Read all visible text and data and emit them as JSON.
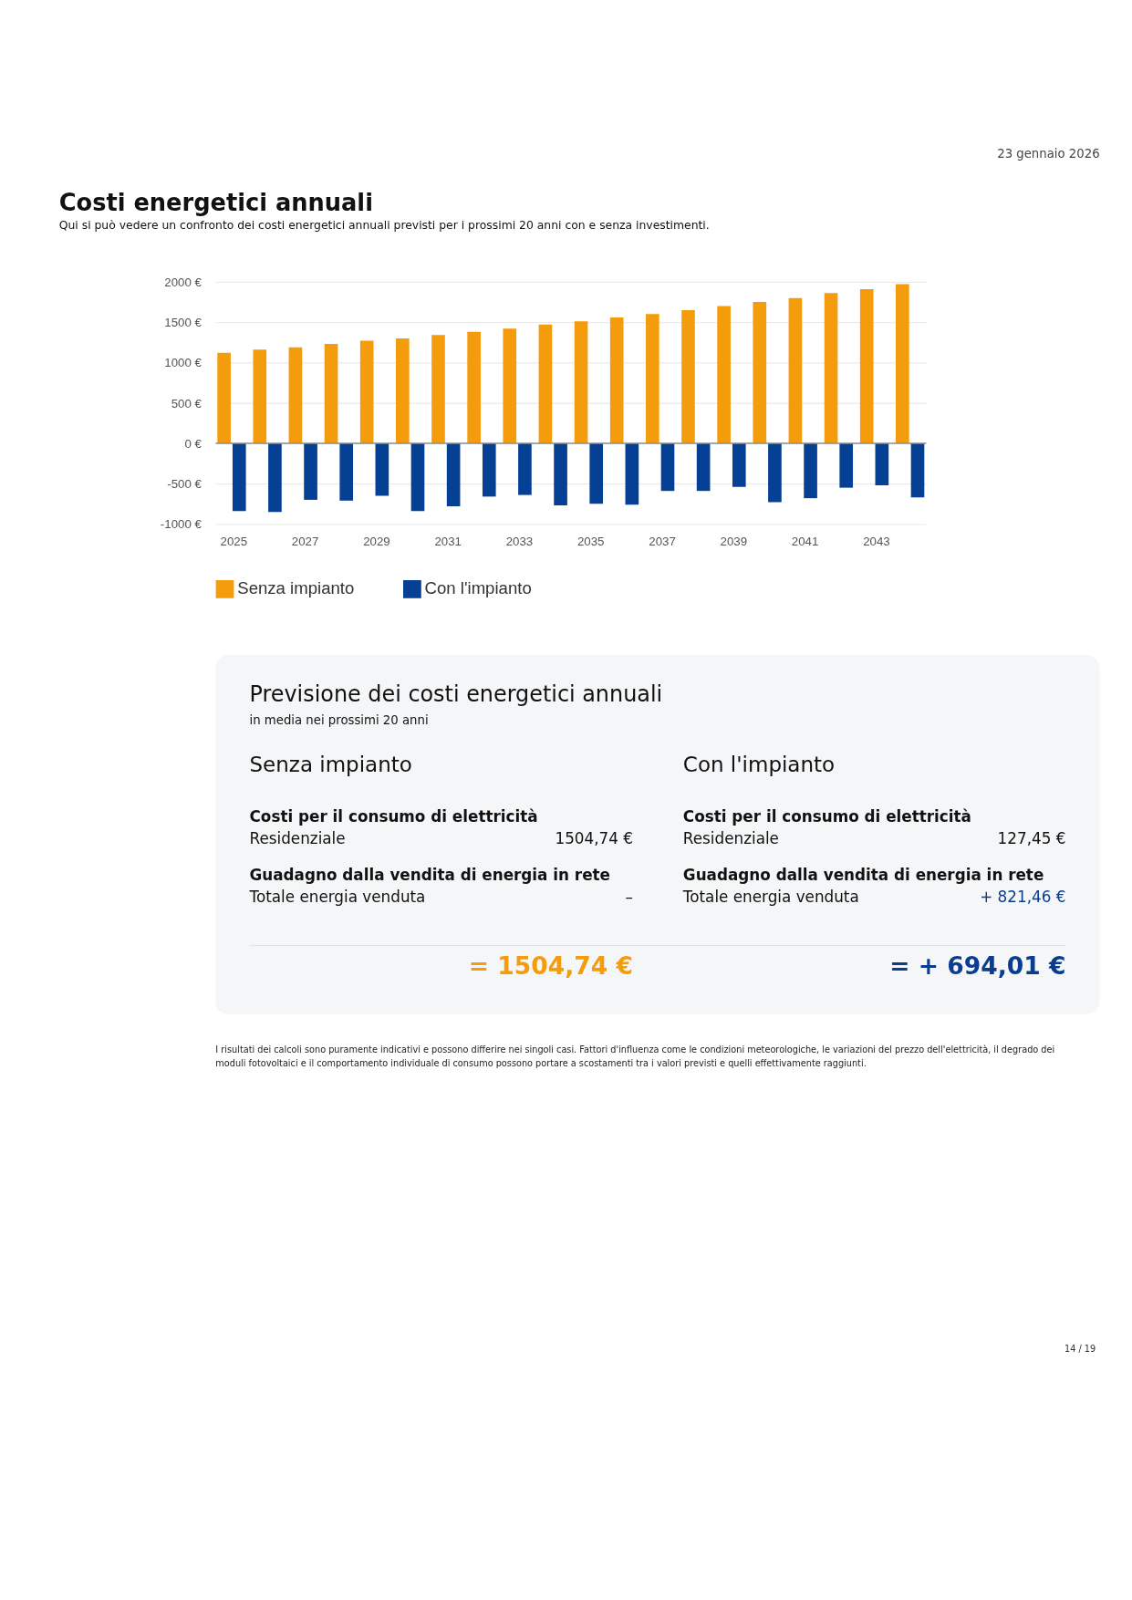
{
  "chart_data": [
    {
      "type": "bar",
      "title": "Costi energetici annuali",
      "subtitle": "Qui si può vedere un confronto dei costi energetici annuali previsti per i prossimi 20 anni con e senza investimenti.",
      "annotations": [
        "23 gennaio 2026"
      ],
      "categories": [
        "2025",
        null,
        "2027",
        null,
        "2029",
        null,
        "2031",
        null,
        "2033",
        null,
        "2035",
        null,
        "2037",
        null,
        "2039",
        null,
        "2041",
        null,
        "2043",
        null
      ],
      "series": [
        {
          "name": "Senza impianto",
          "color": "#f59c0d",
          "values": [
            1120,
            1160,
            1190,
            1230,
            1270,
            1300,
            1340,
            1380,
            1420,
            1470,
            1510,
            1560,
            1600,
            1650,
            1700,
            1750,
            1800,
            1860,
            1910,
            1970
          ]
        },
        {
          "name": "Con l'impianto",
          "color": "#054095",
          "values": [
            -840,
            -850,
            -700,
            -710,
            -650,
            -840,
            -780,
            -660,
            -640,
            -770,
            -750,
            -760,
            -590,
            -590,
            -540,
            -730,
            -680,
            -550,
            -520,
            -670
          ]
        }
      ],
      "ylim": [
        -1000,
        2000
      ],
      "yticks": [
        {
          "value": -1000,
          "label": "-1000 €"
        },
        {
          "value": -500,
          "label": "-500 €"
        },
        {
          "value": 0,
          "label": "0 €"
        },
        {
          "value": 500,
          "label": "500 €"
        },
        {
          "value": 1000,
          "label": "1000 €"
        },
        {
          "value": 1500,
          "label": "1500 €"
        },
        {
          "value": 2000,
          "label": "2000 €"
        }
      ],
      "grid": "y",
      "legend": "bottom"
    },
    {
      "type": "other",
      "title": "Previsione dei costi energetici annuali",
      "subtitle": "in media nei prossimi 20 anni",
      "colors": [
        "#f59c0d",
        "#0a3d8f"
      ],
      "annotations": [
        "Senza impianto",
        "Costi per il consumo di elettricità",
        "Residenziale",
        "1504,74 €",
        "Guadagno dalla vendita di energia in rete",
        "Totale energia venduta",
        "–",
        "= 1504,74 €",
        "Con l'impianto",
        "Costi per il consumo di elettricità",
        "Residenziale",
        "127,45 €",
        "Guadagno dalla vendita di energia in rete",
        "Totale energia venduta",
        "+ 821,46 €",
        "= + 694,01 €",
        "I risultati dei calcoli sono puramente indicativi e possono differire nei singoli casi. Fattori d'influenza come le condizioni meteorologiche, le variazioni del prezzo dell'elettricità, il degrado dei moduli fotovoltaici e il comportamento individuale di consumo possono portare a scostamenti tra i valori previsti e quelli effettivamente raggiunti.",
        "14 / 19"
      ]
    }
  ]
}
